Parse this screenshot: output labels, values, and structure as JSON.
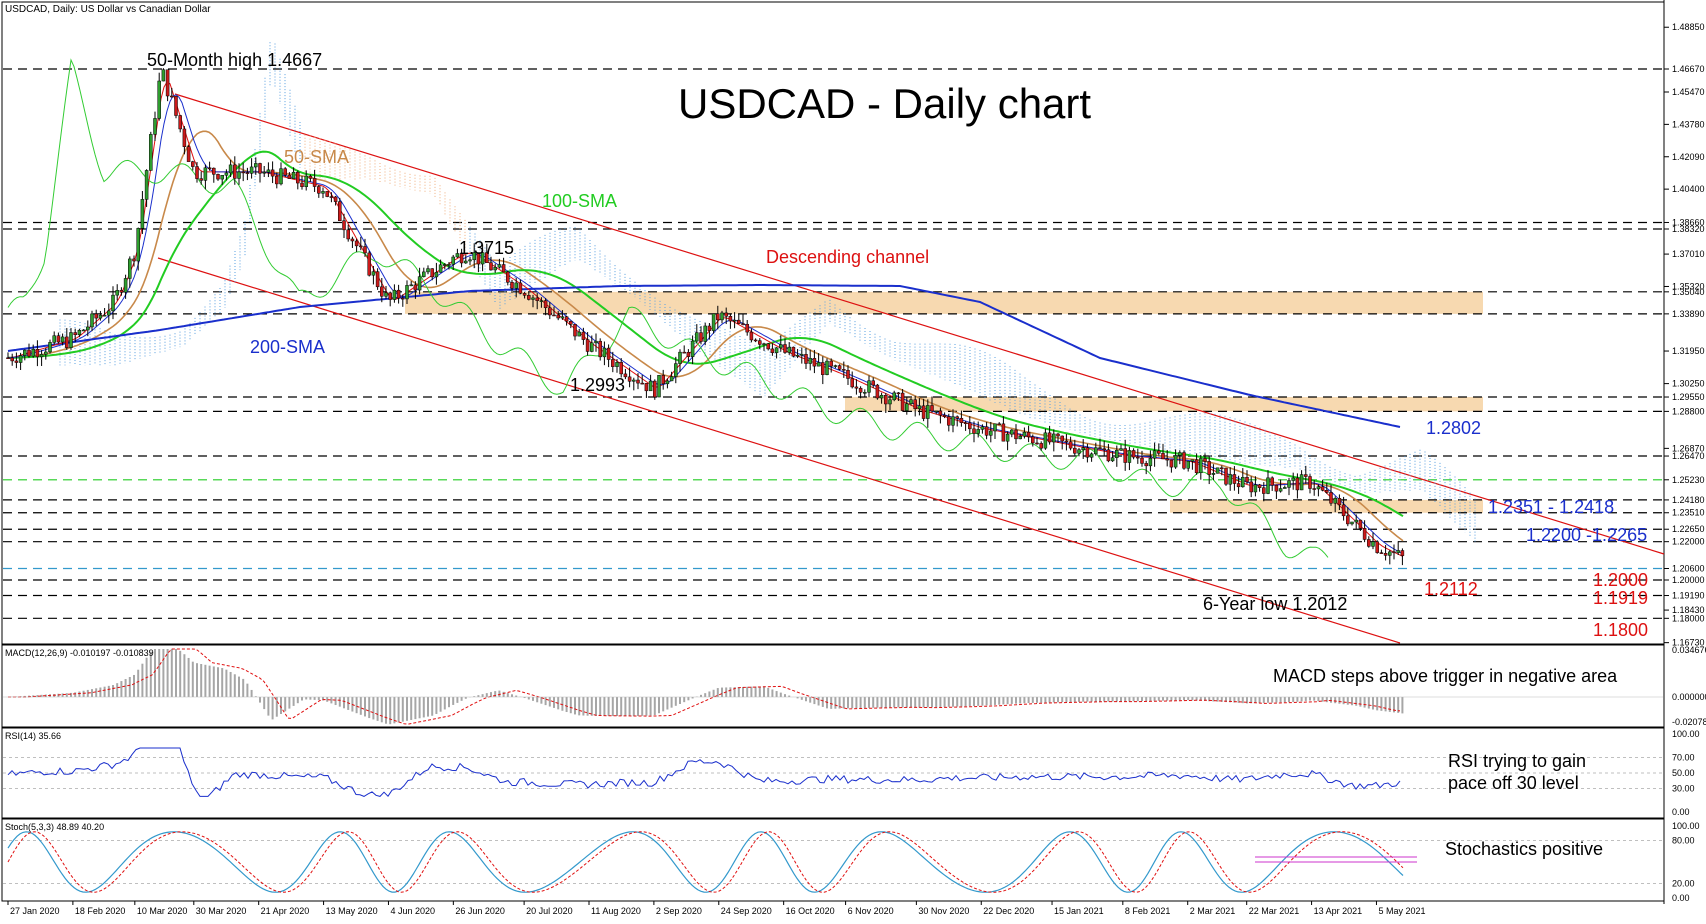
{
  "symbol_header": "USDCAD, Daily:  US Dollar vs Canadian Dollar",
  "title": "USDCAD - Daily chart",
  "colors": {
    "sma50": "#c8894a",
    "sma100": "#22cc22",
    "sma200": "#1a2fcc",
    "channel": "#dd1111",
    "resistance_fill": "#f7d9b0",
    "tenkan": "#e01010",
    "kijun": "#1a2fcc",
    "chikou": "#33cc33",
    "macd_hist": "#a6a6a6",
    "signal": "#e01010",
    "rsi": "#1a2fcc",
    "stoch_main": "#3399cc",
    "stoch_signal": "#e01010",
    "annotation_red": "#dd1111",
    "annotation_blue": "#1a2fcc"
  },
  "price_axis": {
    "ticks": [
      "1.48850",
      "1.46670",
      "1.45470",
      "1.43780",
      "1.42090",
      "1.40400",
      "1.38660",
      "1.38320",
      "1.37010",
      "1.35320",
      "1.35040",
      "1.33890",
      "1.31950",
      "1.30250",
      "1.29550",
      "1.28800",
      "1.26870",
      "1.26470",
      "1.25230",
      "1.24180",
      "1.23510",
      "1.22650",
      "1.22000",
      "1.20600",
      "1.20000",
      "1.19190",
      "1.18430",
      "1.18000",
      "1.16730"
    ]
  },
  "date_axis": [
    "27 Jan 2020",
    "18 Feb 2020",
    "10 Mar 2020",
    "30 Mar 2020",
    "21 Apr 2020",
    "13 May 2020",
    "4 Jun 2020",
    "26 Jun 2020",
    "20 Jul 2020",
    "11 Aug 2020",
    "2 Sep 2020",
    "24 Sep 2020",
    "16 Oct 2020",
    "6 Nov 2020",
    "30 Nov 2020",
    "22 Dec 2020",
    "15 Jan 2021",
    "8 Feb 2021",
    "2 Mar 2021",
    "22 Mar 2021",
    "13 Apr 2021",
    "5 May 2021"
  ],
  "annotations": {
    "month_high": "50-Month high 1.4667",
    "sma50": "50-SMA",
    "sma100": "100-SMA",
    "sma200": "200-SMA",
    "channel": "Descending channel",
    "peak": "1.3715",
    "trough": "1.2993",
    "sma200_value": "1.2802",
    "zone_upper": "1.2351 - 1.2418",
    "zone_lower": "1.2200 -1.2265",
    "current": "1.2112",
    "low": "6-Year low 1.2012",
    "s1": "1.2000",
    "s2": "1.1919",
    "s3": "1.1800"
  },
  "macd": {
    "header": "MACD(12,26,9) -0.010197 -0.010839",
    "note": "MACD steps above trigger in negative area",
    "ticks": [
      "0.034676",
      "0.000000",
      "-0.020785"
    ]
  },
  "rsi": {
    "header": "RSI(14) 35.66",
    "note_line1": "RSI trying to gain",
    "note_line2": "pace off 30 level",
    "ticks": [
      "100.00",
      "70.00",
      "50.00",
      "30.00",
      "0.00"
    ]
  },
  "stoch": {
    "header": "Stoch(5,3,3) 48.89 40.20",
    "note": "Stochastics positive",
    "ticks": [
      "100.00",
      "80.00",
      "20.00",
      "0.00"
    ]
  },
  "chart_data": {
    "type": "candlestick",
    "title": "USDCAD - Daily chart",
    "x_range": [
      "27 Jan 2020",
      "mid May 2021"
    ],
    "y_range": [
      1.1673,
      1.4885
    ],
    "close_path": [
      [
        "27 Jan 2020",
        1.316
      ],
      [
        "18 Feb 2020",
        1.326
      ],
      [
        "3 Mar 2020",
        1.345
      ],
      [
        "10 Mar 2020",
        1.372
      ],
      [
        "19 Mar 2020",
        1.4667
      ],
      [
        "30 Mar 2020",
        1.413
      ],
      [
        "21 Apr 2020",
        1.413
      ],
      [
        "13 May 2020",
        1.405
      ],
      [
        "4 Jun 2020",
        1.345
      ],
      [
        "26 Jun 2020",
        1.368
      ],
      [
        "1 Jul 2020",
        1.3715
      ],
      [
        "20 Jul 2020",
        1.352
      ],
      [
        "11 Aug 2020",
        1.323
      ],
      [
        "2 Sep 2020",
        1.2993
      ],
      [
        "24 Sep 2020",
        1.338
      ],
      [
        "16 Oct 2020",
        1.319
      ],
      [
        "6 Nov 2020",
        1.306
      ],
      [
        "30 Nov 2020",
        1.289
      ],
      [
        "22 Dec 2020",
        1.279
      ],
      [
        "15 Jan 2021",
        1.272
      ],
      [
        "8 Feb 2021",
        1.265
      ],
      [
        "2 Mar 2021",
        1.262
      ],
      [
        "22 Mar 2021",
        1.249
      ],
      [
        "13 Apr 2021",
        1.251
      ],
      [
        "5 May 2021",
        1.218
      ],
      [
        "14 May 2021",
        1.2112
      ]
    ],
    "sma_values": {
      "50-SMA": 1.2351,
      "100-SMA": 1.2525,
      "200-SMA": 1.2802
    },
    "horizontal_levels": [
      1.4667,
      1.3866,
      1.3832,
      1.3504,
      1.3389,
      1.2955,
      1.288,
      1.2647,
      1.2523,
      1.2418,
      1.2351,
      1.2265,
      1.22,
      1.206,
      1.2,
      1.1919,
      1.18
    ],
    "zones": [
      [
        1.3389,
        1.3504
      ],
      [
        1.288,
        1.2955
      ],
      [
        1.2351,
        1.2418
      ]
    ],
    "six_year_low": 1.2012,
    "indicators": {
      "MACD": {
        "main": -0.010197,
        "signal": -0.010839
      },
      "RSI": {
        "period": 14,
        "value": 35.66,
        "levels": [
          70,
          50,
          30
        ]
      },
      "Stochastic": {
        "params": [
          5,
          3,
          3
        ],
        "main": 48.89,
        "signal": 40.2,
        "levels": [
          80,
          20
        ]
      }
    }
  }
}
